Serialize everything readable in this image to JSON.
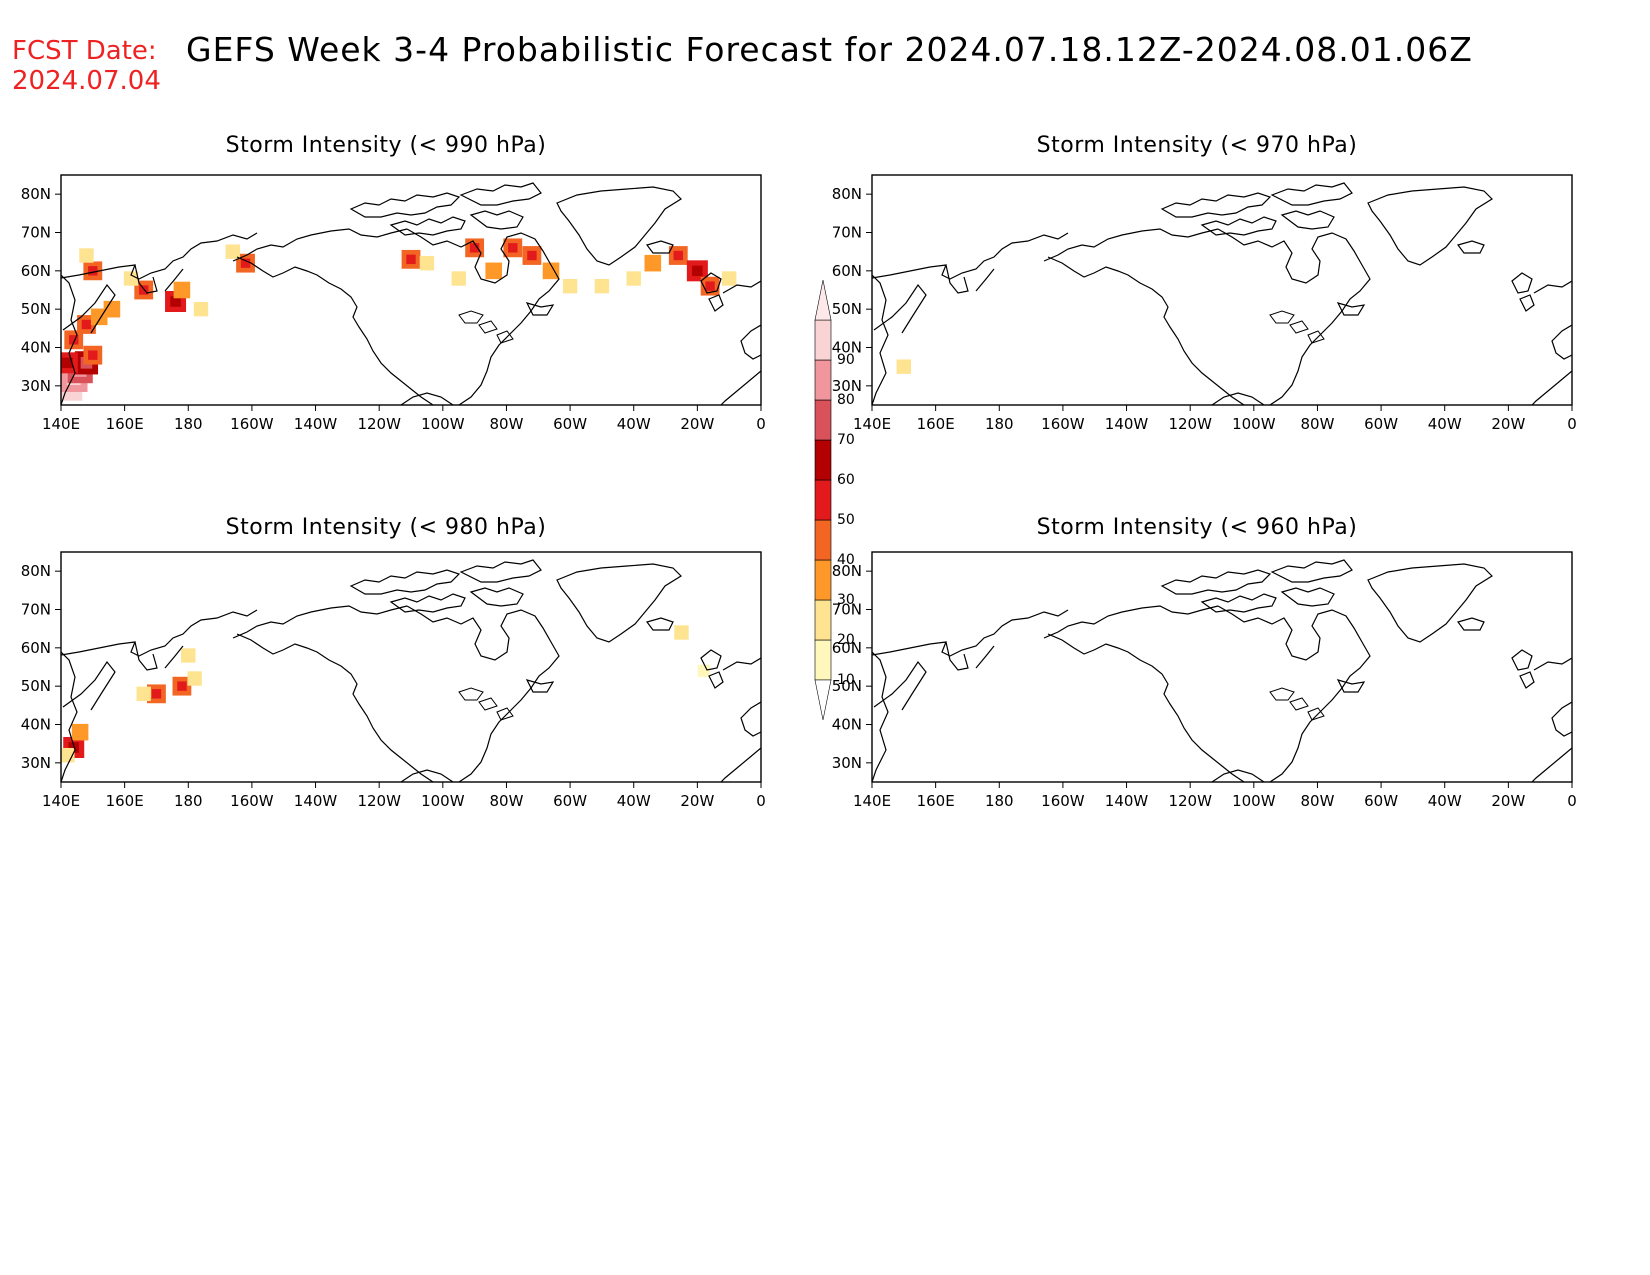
{
  "header": {
    "fcst_label": "FCST Date:",
    "fcst_date": "2024.07.04",
    "title": "GEFS Week 3-4 Probabilistic Forecast for 2024.07.18.12Z-2024.08.01.06Z"
  },
  "axes": {
    "lon_labels": [
      "140E",
      "160E",
      "180",
      "160W",
      "140W",
      "120W",
      "100W",
      "80W",
      "60W",
      "40W",
      "20W",
      "0"
    ],
    "lat_labels": [
      "30N",
      "40N",
      "50N",
      "60N",
      "70N",
      "80N"
    ]
  },
  "panels": [
    {
      "id": "p990",
      "title": "Storm Intensity (< 990 hPa)"
    },
    {
      "id": "p970",
      "title": "Storm Intensity (< 970 hPa)"
    },
    {
      "id": "p980",
      "title": "Storm Intensity (< 980 hPa)"
    },
    {
      "id": "p960",
      "title": "Storm Intensity (< 960 hPa)"
    }
  ],
  "colorbar": {
    "labels": [
      "10",
      "20",
      "30",
      "40",
      "50",
      "60",
      "70",
      "80",
      "90"
    ],
    "colors": [
      "#fff7bc",
      "#fee391",
      "#fe9929",
      "#f26522",
      "#e31a1c",
      "#b30000",
      "#d9525a",
      "#f0969c",
      "#fad4d4"
    ]
  },
  "chart_data": {
    "type": "heatmap",
    "units": "probability (%)",
    "lon_range": [
      "140E",
      "0"
    ],
    "lat_range": [
      "25N",
      "85N"
    ],
    "panels": [
      {
        "title": "Storm Intensity (< 990 hPa)",
        "cells": [
          {
            "lon": 142,
            "lat": 30,
            "value": 90
          },
          {
            "lon": 144,
            "lat": 32,
            "value": 80
          },
          {
            "lon": 146,
            "lat": 34,
            "value": 70
          },
          {
            "lon": 148,
            "lat": 36,
            "value": 60
          },
          {
            "lon": 142,
            "lat": 36,
            "value": 50
          },
          {
            "lon": 150,
            "lat": 38,
            "value": 40
          },
          {
            "lon": 144,
            "lat": 42,
            "value": 40
          },
          {
            "lon": 148,
            "lat": 46,
            "value": 40
          },
          {
            "lon": 152,
            "lat": 48,
            "value": 30
          },
          {
            "lon": 156,
            "lat": 50,
            "value": 30
          },
          {
            "lon": 150,
            "lat": 60,
            "value": 40
          },
          {
            "lon": 148,
            "lat": 64,
            "value": 20
          },
          {
            "lon": 166,
            "lat": 55,
            "value": 40
          },
          {
            "lon": 162,
            "lat": 58,
            "value": 20
          },
          {
            "lon": 176,
            "lat": 52,
            "value": 50
          },
          {
            "lon": 178,
            "lat": 55,
            "value": 30
          },
          {
            "lon": 184,
            "lat": 50,
            "value": 20
          },
          {
            "lon": 198,
            "lat": 62,
            "value": 40
          },
          {
            "lon": 194,
            "lat": 65,
            "value": 20
          },
          {
            "lon": 250,
            "lat": 63,
            "value": 40
          },
          {
            "lon": 255,
            "lat": 62,
            "value": 20
          },
          {
            "lon": 265,
            "lat": 58,
            "value": 20
          },
          {
            "lon": 270,
            "lat": 66,
            "value": 40
          },
          {
            "lon": 276,
            "lat": 60,
            "value": 30
          },
          {
            "lon": 282,
            "lat": 66,
            "value": 40
          },
          {
            "lon": 288,
            "lat": 64,
            "value": 40
          },
          {
            "lon": 294,
            "lat": 60,
            "value": 30
          },
          {
            "lon": 300,
            "lat": 56,
            "value": 20
          },
          {
            "lon": 310,
            "lat": 56,
            "value": 20
          },
          {
            "lon": 320,
            "lat": 58,
            "value": 20
          },
          {
            "lon": 326,
            "lat": 62,
            "value": 30
          },
          {
            "lon": 334,
            "lat": 64,
            "value": 40
          },
          {
            "lon": 340,
            "lat": 60,
            "value": 50
          },
          {
            "lon": 344,
            "lat": 56,
            "value": 40
          },
          {
            "lon": 350,
            "lat": 58,
            "value": 20
          }
        ]
      },
      {
        "title": "Storm Intensity (< 970 hPa)",
        "cells": [
          {
            "lon": 150,
            "lat": 35,
            "value": 20
          }
        ]
      },
      {
        "title": "Storm Intensity (< 980 hPa)",
        "cells": [
          {
            "lon": 144,
            "lat": 34,
            "value": 50
          },
          {
            "lon": 146,
            "lat": 38,
            "value": 30
          },
          {
            "lon": 142,
            "lat": 32,
            "value": 20
          },
          {
            "lon": 170,
            "lat": 48,
            "value": 40
          },
          {
            "lon": 166,
            "lat": 48,
            "value": 20
          },
          {
            "lon": 178,
            "lat": 50,
            "value": 40
          },
          {
            "lon": 182,
            "lat": 52,
            "value": 20
          },
          {
            "lon": 180,
            "lat": 58,
            "value": 20
          },
          {
            "lon": 335,
            "lat": 64,
            "value": 20
          },
          {
            "lon": 342,
            "lat": 54,
            "value": 10
          }
        ]
      },
      {
        "title": "Storm Intensity (< 960 hPa)",
        "cells": []
      }
    ]
  }
}
